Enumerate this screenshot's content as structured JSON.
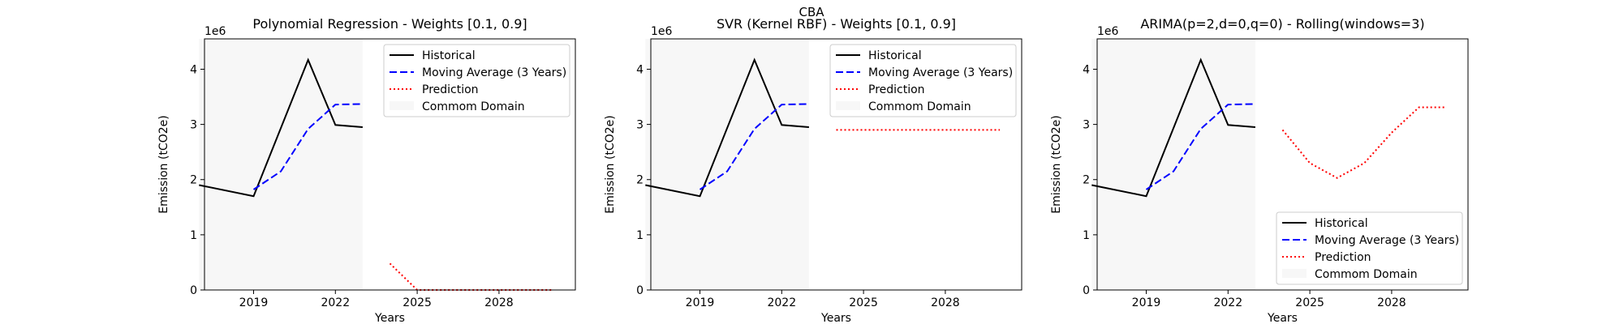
{
  "figure": {
    "suptitle": "CBA"
  },
  "chart_data": [
    {
      "type": "line",
      "title": "Polynomial Regression - Weights [0.1, 0.9]",
      "xlabel": "Years",
      "ylabel": "Emission (tCO2e)",
      "y_offset_text": "1e6",
      "xlim": [
        2017.2,
        2030.8
      ],
      "ylim": [
        0,
        4.55
      ],
      "xticks": [
        2019,
        2022,
        2025,
        2028
      ],
      "yticks": [
        0,
        1,
        2,
        3,
        4
      ],
      "grid": false,
      "legend_position": "upper right",
      "common_domain": [
        2017,
        2023
      ],
      "series": [
        {
          "name": "Historical",
          "color": "#000000",
          "style": "solid",
          "x": [
            2017,
            2019,
            2021,
            2022,
            2023
          ],
          "y": [
            1.9,
            1.7,
            4.17,
            2.99,
            2.95
          ]
        },
        {
          "name": "Moving Average (3 Years)",
          "color": "#0000ff",
          "style": "dashed",
          "x": [
            2019,
            2020,
            2021,
            2022,
            2023
          ],
          "y": [
            1.82,
            2.15,
            2.92,
            3.36,
            3.37
          ]
        },
        {
          "name": "Prediction",
          "color": "#ff0000",
          "style": "dotted",
          "x": [
            2024,
            2025,
            2026,
            2027,
            2028,
            2029,
            2030
          ],
          "y": [
            0.48,
            0,
            0,
            0,
            0,
            0,
            0
          ]
        },
        {
          "name": "Commom Domain",
          "color": "#f7f7f7",
          "style": "band"
        }
      ]
    },
    {
      "type": "line",
      "title": "SVR (Kernel RBF) - Weights [0.1, 0.9]",
      "xlabel": "Years",
      "ylabel": "Emission (tCO2e)",
      "y_offset_text": "1e6",
      "xlim": [
        2017.2,
        2030.8
      ],
      "ylim": [
        0,
        4.55
      ],
      "xticks": [
        2019,
        2022,
        2025,
        2028
      ],
      "yticks": [
        0,
        1,
        2,
        3,
        4
      ],
      "grid": false,
      "legend_position": "upper right",
      "common_domain": [
        2017,
        2023
      ],
      "series": [
        {
          "name": "Historical",
          "color": "#000000",
          "style": "solid",
          "x": [
            2017,
            2019,
            2021,
            2022,
            2023
          ],
          "y": [
            1.9,
            1.7,
            4.17,
            2.99,
            2.95
          ]
        },
        {
          "name": "Moving Average (3 Years)",
          "color": "#0000ff",
          "style": "dashed",
          "x": [
            2019,
            2020,
            2021,
            2022,
            2023
          ],
          "y": [
            1.82,
            2.15,
            2.92,
            3.36,
            3.37
          ]
        },
        {
          "name": "Prediction",
          "color": "#ff0000",
          "style": "dotted",
          "x": [
            2024,
            2025,
            2026,
            2027,
            2028,
            2029,
            2030
          ],
          "y": [
            2.9,
            2.9,
            2.9,
            2.9,
            2.9,
            2.9,
            2.9
          ]
        },
        {
          "name": "Commom Domain",
          "color": "#f7f7f7",
          "style": "band"
        }
      ]
    },
    {
      "type": "line",
      "title": "ARIMA(p=2,d=0,q=0) - Rolling(windows=3)",
      "xlabel": "Years",
      "ylabel": "Emission (tCO2e)",
      "y_offset_text": "1e6",
      "xlim": [
        2017.2,
        2030.8
      ],
      "ylim": [
        0,
        4.55
      ],
      "xticks": [
        2019,
        2022,
        2025,
        2028
      ],
      "yticks": [
        0,
        1,
        2,
        3,
        4
      ],
      "grid": false,
      "legend_position": "lower right",
      "common_domain": [
        2017,
        2023
      ],
      "series": [
        {
          "name": "Historical",
          "color": "#000000",
          "style": "solid",
          "x": [
            2017,
            2019,
            2021,
            2022,
            2023
          ],
          "y": [
            1.9,
            1.7,
            4.17,
            2.99,
            2.95
          ]
        },
        {
          "name": "Moving Average (3 Years)",
          "color": "#0000ff",
          "style": "dashed",
          "x": [
            2019,
            2020,
            2021,
            2022,
            2023
          ],
          "y": [
            1.82,
            2.15,
            2.92,
            3.36,
            3.37
          ]
        },
        {
          "name": "Prediction",
          "color": "#ff0000",
          "style": "dotted",
          "x": [
            2024,
            2025,
            2026,
            2027,
            2028,
            2029,
            2030
          ],
          "y": [
            2.9,
            2.3,
            2.03,
            2.3,
            2.85,
            3.31,
            3.31
          ]
        },
        {
          "name": "Commom Domain",
          "color": "#f7f7f7",
          "style": "band"
        }
      ]
    }
  ]
}
